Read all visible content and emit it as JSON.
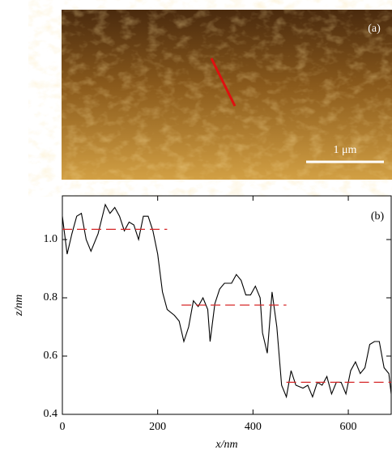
{
  "image": {
    "label": "(a)",
    "scale_bar": "1 μm"
  },
  "chart_data": {
    "type": "line",
    "annotation": "(b)",
    "x_label": "x/nm",
    "y_label": "z/nm",
    "xlim": [
      0,
      690
    ],
    "xticks": [
      0,
      200,
      400,
      600
    ],
    "ylim": [
      0.4,
      1.15
    ],
    "yticks": [
      0.4,
      0.6,
      0.8,
      {
        "value": 1,
        "label": "1.0"
      }
    ],
    "series": [
      {
        "color": "#000000",
        "dash": false,
        "x": [
          0,
          10,
          20,
          30,
          40,
          50,
          60,
          75,
          90,
          100,
          110,
          120,
          130,
          140,
          150,
          160,
          170,
          180,
          190,
          200,
          210,
          220,
          235,
          245,
          255,
          265,
          275,
          285,
          295,
          305,
          310,
          320,
          330,
          340,
          355,
          365,
          375,
          385,
          395,
          405,
          415,
          420,
          430,
          440,
          450,
          460,
          470,
          480,
          490,
          505,
          515,
          525,
          535,
          545,
          555,
          565,
          575,
          585,
          595,
          605,
          615,
          625,
          635,
          645,
          655,
          665,
          675,
          685,
          690
        ],
        "values": [
          1.08,
          0.95,
          1.02,
          1.08,
          1.09,
          1.0,
          0.96,
          1.02,
          1.12,
          1.09,
          1.11,
          1.08,
          1.03,
          1.06,
          1.05,
          1.0,
          1.08,
          1.08,
          1.03,
          0.95,
          0.82,
          0.76,
          0.74,
          0.72,
          0.65,
          0.7,
          0.79,
          0.77,
          0.8,
          0.76,
          0.65,
          0.78,
          0.83,
          0.85,
          0.85,
          0.88,
          0.86,
          0.81,
          0.81,
          0.84,
          0.8,
          0.68,
          0.61,
          0.82,
          0.7,
          0.5,
          0.46,
          0.55,
          0.5,
          0.49,
          0.5,
          0.46,
          0.51,
          0.5,
          0.53,
          0.47,
          0.51,
          0.51,
          0.47,
          0.55,
          0.58,
          0.54,
          0.56,
          0.64,
          0.65,
          0.65,
          0.56,
          0.54,
          0.47
        ]
      },
      {
        "color": "#d62728",
        "dash": true,
        "x": [
          0,
          220
        ],
        "values": [
          1.035,
          1.035
        ]
      },
      {
        "color": "#d62728",
        "dash": true,
        "x": [
          250,
          470
        ],
        "values": [
          0.775,
          0.775
        ]
      },
      {
        "color": "#d62728",
        "dash": true,
        "x": [
          470,
          690
        ],
        "values": [
          0.51,
          0.51
        ]
      }
    ]
  }
}
